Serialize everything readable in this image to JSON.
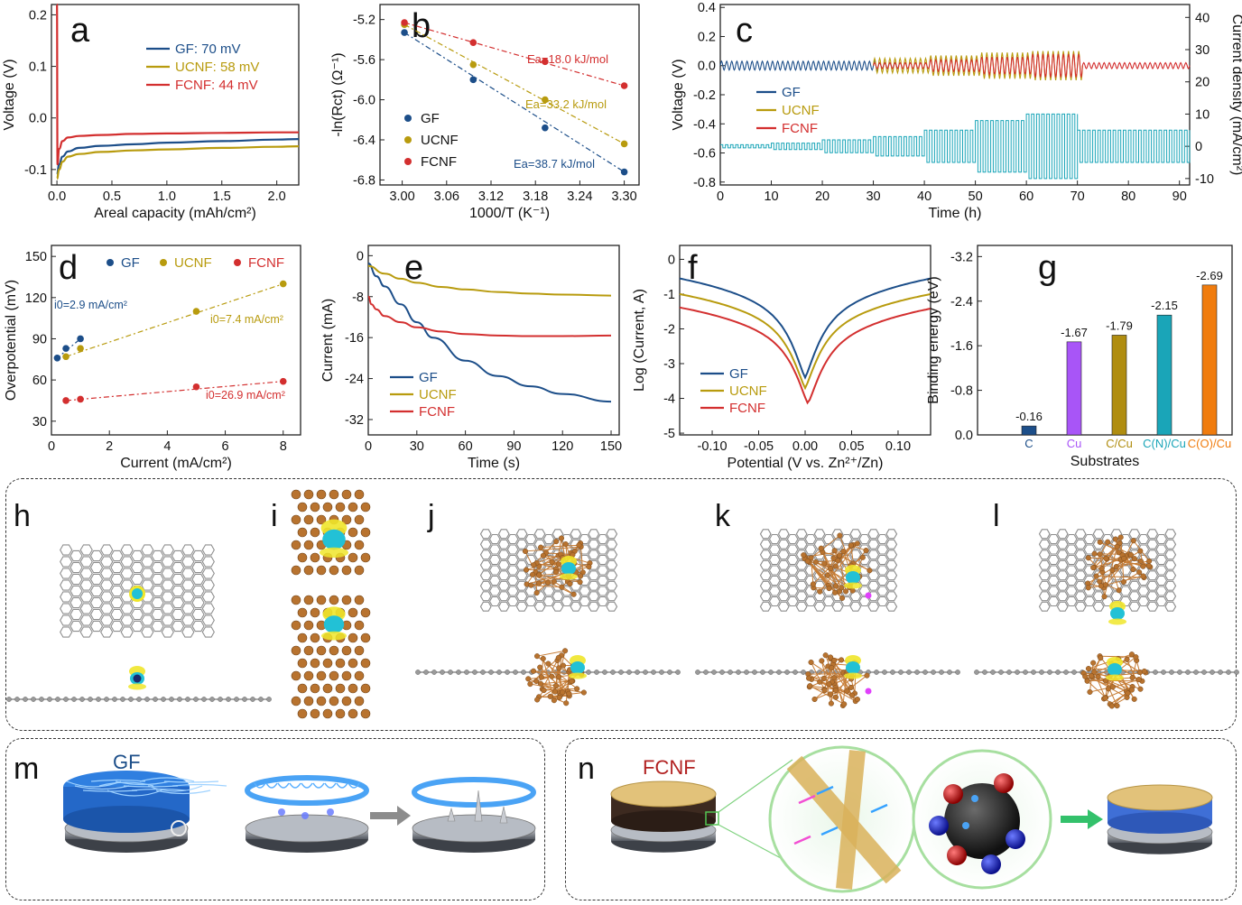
{
  "panel_letters": [
    "a",
    "b",
    "c",
    "d",
    "e",
    "f",
    "g",
    "h",
    "i",
    "j",
    "k",
    "l",
    "m",
    "n"
  ],
  "scene_titles": {
    "m": "GF",
    "n": "FCNF"
  },
  "colors": {
    "GF": "#1c4e89",
    "UCNF": "#b89b0e",
    "FCNF": "#d32f2f",
    "current": "#1aa5b8",
    "Cu": "#a855f7",
    "C_Cu": "#b08d10",
    "CN_Cu": "#1aa5b8",
    "CO_Cu": "#f07c0e",
    "C": "#1c4e89"
  },
  "chart_data": [
    {
      "id": "a",
      "type": "line",
      "xlabel": "Areal capacity (mAh/cm²)",
      "ylabel": "Voltage (V)",
      "xlim": [
        -0.05,
        2.2
      ],
      "ylim": [
        -0.13,
        0.22
      ],
      "xticks": [
        0.0,
        0.5,
        1.0,
        1.5,
        2.0
      ],
      "yticks": [
        -0.1,
        0.0,
        0.1,
        0.2
      ],
      "legend_position": "top-right",
      "series": [
        {
          "name": "GF: 70 mV",
          "color": "#1c4e89",
          "x": [
            0.0,
            0.02,
            0.05,
            0.1,
            0.2,
            0.4,
            0.7,
            1.0,
            1.5,
            2.0,
            2.2
          ],
          "y": [
            -0.11,
            -0.09,
            -0.075,
            -0.065,
            -0.058,
            -0.054,
            -0.051,
            -0.048,
            -0.045,
            -0.042,
            -0.041
          ]
        },
        {
          "name": "UCNF: 58 mV",
          "color": "#b89b0e",
          "x": [
            0.0,
            0.02,
            0.05,
            0.1,
            0.2,
            0.4,
            0.7,
            1.0,
            1.5,
            2.0,
            2.2
          ],
          "y": [
            -0.118,
            -0.1,
            -0.085,
            -0.075,
            -0.07,
            -0.066,
            -0.063,
            -0.061,
            -0.058,
            -0.056,
            -0.055
          ]
        },
        {
          "name": "FCNF: 44 mV",
          "color": "#d32f2f",
          "x": [
            0.0,
            0.005,
            0.02,
            0.05,
            0.1,
            0.2,
            0.4,
            0.7,
            1.0,
            1.5,
            2.0,
            2.2
          ],
          "y": [
            0.22,
            -0.09,
            -0.06,
            -0.045,
            -0.038,
            -0.035,
            -0.033,
            -0.031,
            -0.03,
            -0.029,
            -0.028,
            -0.028
          ]
        }
      ]
    },
    {
      "id": "b",
      "type": "scatter",
      "xlabel": "1000/T (K⁻¹)",
      "ylabel": "-ln(Rct) (Ω⁻¹)",
      "xlim": [
        2.97,
        3.32
      ],
      "ylim": [
        -6.85,
        -5.05
      ],
      "xticks": [
        3.0,
        3.06,
        3.12,
        3.18,
        3.24,
        3.3
      ],
      "yticks": [
        -6.8,
        -6.4,
        -6.0,
        -5.6,
        -5.2
      ],
      "legend_position": "bottom-left",
      "series": [
        {
          "name": "GF",
          "color": "#1c4e89",
          "x": [
            3.003,
            3.096,
            3.193,
            3.3
          ],
          "y": [
            -5.33,
            -5.8,
            -6.28,
            -6.72
          ],
          "annotation": "Ea=38.7 kJ/mol"
        },
        {
          "name": "UCNF",
          "color": "#b89b0e",
          "x": [
            3.003,
            3.096,
            3.193,
            3.3
          ],
          "y": [
            -5.25,
            -5.65,
            -6.0,
            -6.44
          ],
          "annotation": "Ea=33.2 kJ/mol"
        },
        {
          "name": "FCNF",
          "color": "#d32f2f",
          "x": [
            3.003,
            3.096,
            3.193,
            3.3
          ],
          "y": [
            -5.23,
            -5.43,
            -5.62,
            -5.86
          ],
          "annotation": "Ea=18.0 kJ/mol"
        }
      ]
    },
    {
      "id": "c",
      "type": "line",
      "xlabel": "Time (h)",
      "ylabel": "Voltage (V)",
      "y2label": "Current density (mA/cm²)",
      "xlim": [
        0,
        92
      ],
      "ylim": [
        -0.82,
        0.42
      ],
      "y2lim": [
        -12,
        44
      ],
      "xticks": [
        0,
        10,
        20,
        30,
        40,
        50,
        60,
        70,
        80,
        90
      ],
      "yticks": [
        -0.8,
        -0.6,
        -0.4,
        -0.2,
        0.0,
        0.2,
        0.4
      ],
      "y2ticks": [
        -10,
        0,
        10,
        20,
        30,
        40
      ],
      "legend_position": "middle-left",
      "series": [
        {
          "name": "GF",
          "color": "#1c4e89",
          "t_end_h": 35,
          "amplitude_V_by_step": [
            [
              0,
              31,
              0.03
            ],
            [
              31,
              35,
              0.02
            ]
          ]
        },
        {
          "name": "UCNF",
          "color": "#b89b0e",
          "t_start_h": 30,
          "t_end_h": 71,
          "amplitude_V_by_step": [
            [
              30,
              41,
              0.05
            ],
            [
              41,
              51,
              0.07
            ],
            [
              51,
              61,
              0.09
            ],
            [
              61,
              71,
              0.1
            ]
          ]
        },
        {
          "name": "FCNF",
          "color": "#d32f2f",
          "t_start_h": 30,
          "t_end_h": 92,
          "amplitude_V_by_step": [
            [
              30,
              41,
              0.02
            ],
            [
              41,
              51,
              0.04
            ],
            [
              51,
              61,
              0.06
            ],
            [
              61,
              71,
              0.08
            ],
            [
              71,
              92,
              0.02
            ]
          ]
        },
        {
          "name": "current",
          "color": "#1aa5b8",
          "axis": "right",
          "steps": [
            [
              0,
              10,
              0.5
            ],
            [
              10,
              20,
              1
            ],
            [
              20,
              30,
              2
            ],
            [
              30,
              40,
              3
            ],
            [
              40,
              50,
              5
            ],
            [
              50,
              60,
              8
            ],
            [
              60,
              70,
              10
            ],
            [
              70,
              92,
              5
            ]
          ]
        }
      ]
    },
    {
      "id": "d",
      "type": "scatter",
      "xlabel": "Current (mA/cm²)",
      "ylabel": "Overpotential (mV)",
      "xlim": [
        0,
        8.6
      ],
      "ylim": [
        20,
        158
      ],
      "xticks": [
        0,
        2,
        4,
        6,
        8
      ],
      "yticks": [
        30,
        60,
        90,
        120,
        150
      ],
      "legend_position": "top",
      "series": [
        {
          "name": "GF",
          "color": "#1c4e89",
          "x": [
            0.2,
            0.5,
            1.0
          ],
          "y": [
            76,
            83,
            90
          ],
          "annotation": "i0=2.9 mA/cm²"
        },
        {
          "name": "UCNF",
          "color": "#b89b0e",
          "x": [
            0.5,
            1.0,
            5.0,
            8.0
          ],
          "y": [
            77,
            83,
            110,
            130
          ],
          "annotation": "i0=7.4 mA/cm²"
        },
        {
          "name": "FCNF",
          "color": "#d32f2f",
          "x": [
            0.5,
            1.0,
            5.0,
            8.0
          ],
          "y": [
            45,
            46,
            55,
            59
          ],
          "annotation": "i0=26.9 mA/cm²"
        }
      ]
    },
    {
      "id": "e",
      "type": "line",
      "xlabel": "Time (s)",
      "ylabel": "Current (mA)",
      "xlim": [
        0,
        155
      ],
      "ylim": [
        -35,
        2
      ],
      "xticks": [
        0,
        30,
        60,
        90,
        120,
        150
      ],
      "yticks": [
        -32,
        -24,
        -16,
        -8,
        0
      ],
      "legend_position": "bottom-left",
      "series": [
        {
          "name": "GF",
          "color": "#1c4e89",
          "x": [
            0,
            5,
            10,
            20,
            30,
            40,
            60,
            80,
            100,
            120,
            150
          ],
          "y": [
            -1.5,
            -4,
            -6,
            -9.5,
            -13,
            -16,
            -20.5,
            -23.5,
            -25.5,
            -27,
            -28.5
          ]
        },
        {
          "name": "UCNF",
          "color": "#b89b0e",
          "x": [
            0,
            10,
            20,
            30,
            45,
            60,
            80,
            100,
            120,
            150
          ],
          "y": [
            -2,
            -3.5,
            -4.5,
            -5.3,
            -6.1,
            -6.6,
            -7.1,
            -7.4,
            -7.6,
            -7.8
          ]
        },
        {
          "name": "FCNF",
          "color": "#d32f2f",
          "x": [
            0,
            2,
            5,
            10,
            20,
            30,
            45,
            60,
            80,
            100,
            120,
            150
          ],
          "y": [
            -8,
            -9.5,
            -10.5,
            -11.8,
            -13,
            -14,
            -14.8,
            -15.3,
            -15.6,
            -15.7,
            -15.7,
            -15.6
          ]
        }
      ]
    },
    {
      "id": "f",
      "type": "line",
      "xlabel": "Potential (V vs. Zn²⁺/Zn)",
      "ylabel": "Log (Current, A)",
      "xlim": [
        -0.135,
        0.135
      ],
      "ylim": [
        -5.05,
        0.4
      ],
      "xticks": [
        -0.1,
        -0.05,
        0.0,
        0.05,
        0.1
      ],
      "yticks": [
        -5,
        -4,
        -3,
        -2,
        -1,
        0
      ],
      "legend_position": "bottom-left",
      "series": [
        {
          "name": "GF",
          "color": "#1c4e89",
          "min_x": 0.0,
          "min_y": -3.4,
          "edge_y": -0.55
        },
        {
          "name": "UCNF",
          "color": "#b89b0e",
          "min_x": 0.0,
          "min_y": -3.7,
          "edge_y": -1.0
        },
        {
          "name": "FCNF",
          "color": "#d32f2f",
          "min_x": 0.003,
          "min_y": -4.15,
          "edge_y": -1.4
        }
      ]
    },
    {
      "id": "g",
      "type": "bar",
      "xlabel": "Substrates",
      "ylabel": "Binding energy (eV)",
      "ylim": [
        0,
        -3.4
      ],
      "yticks": [
        0.0,
        -0.8,
        -1.6,
        -2.4,
        -3.2
      ],
      "categories": [
        "C",
        "Cu",
        "C/Cu",
        "C(N)/Cu",
        "C(O)/Cu"
      ],
      "values": [
        -0.16,
        -1.67,
        -1.79,
        -2.15,
        -2.69
      ],
      "value_labels": [
        "-0.16",
        "-1.67",
        "-1.79",
        "-2.15",
        "-2.69"
      ]
    }
  ]
}
